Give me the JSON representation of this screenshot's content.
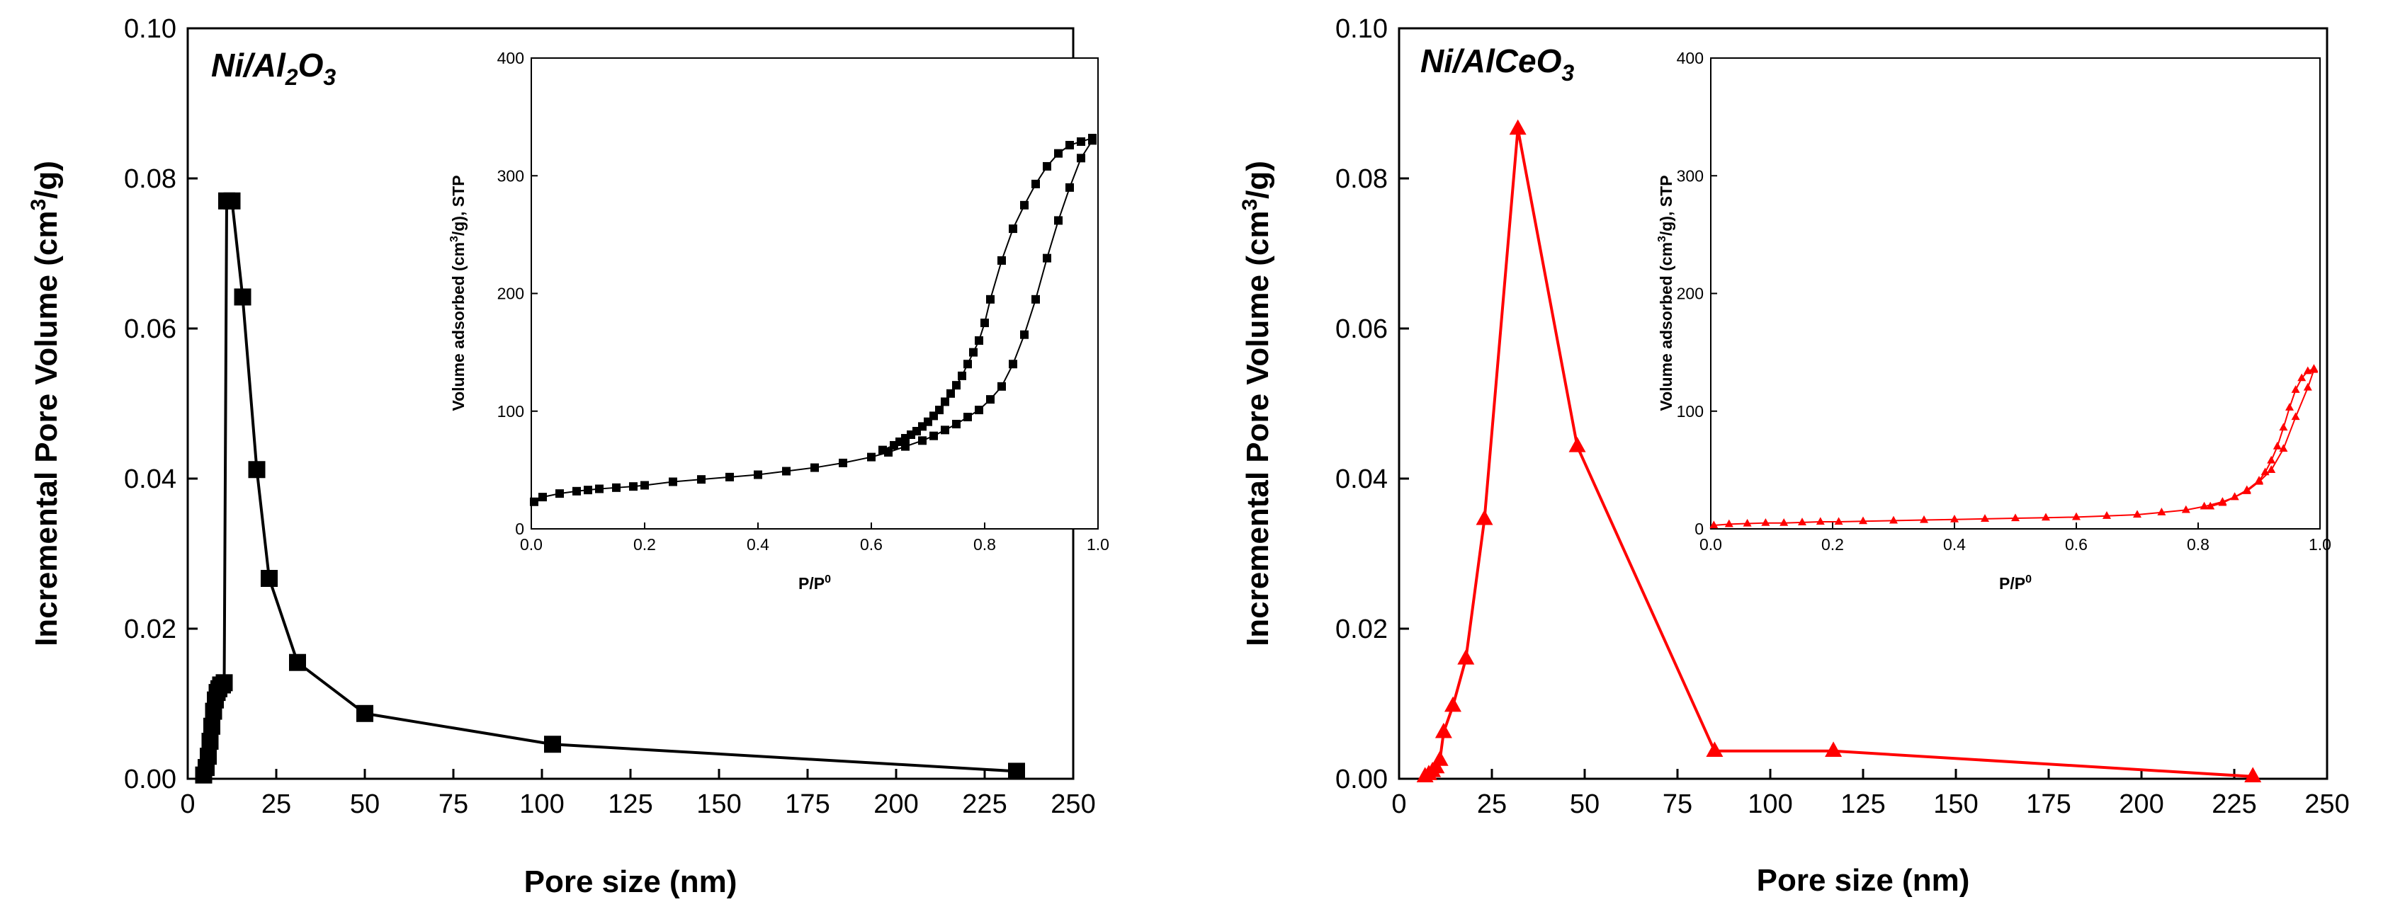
{
  "chart_data": [
    {
      "type": "line",
      "panel": "left",
      "title": "Ni/Al2O3",
      "title_parts": {
        "base": "Ni/Al",
        "sub1": "2",
        "mid": "O",
        "sub2": "3"
      },
      "xlabel": "Pore size (nm)",
      "ylabel": {
        "text": "Incremental Pore Volume (cm",
        "sup": "3",
        "tail": "/g)"
      },
      "xlim": [
        0,
        250
      ],
      "ylim": [
        0,
        0.1
      ],
      "xticks": [
        "0",
        "25",
        "50",
        "75",
        "100",
        "125",
        "150",
        "175",
        "200",
        "225",
        "250"
      ],
      "yticks": [
        "0.00",
        "0.02",
        "0.04",
        "0.06",
        "0.08",
        "0.10"
      ],
      "color": "#000000",
      "marker": "square",
      "series": [
        {
          "name": "Ni/Al2O3",
          "x": [
            4.5,
            5.2,
            5.8,
            6.3,
            6.8,
            7.3,
            7.8,
            8.3,
            8.8,
            9.3,
            9.8,
            10.3,
            11.0,
            12.5,
            15.5,
            19.5,
            23.0,
            31.0,
            50.0,
            103.0,
            234.0
          ],
          "y": [
            0.0005,
            0.0015,
            0.003,
            0.005,
            0.007,
            0.009,
            0.0105,
            0.0115,
            0.012,
            0.0125,
            0.0125,
            0.0128,
            0.077,
            0.077,
            0.0642,
            0.0412,
            0.0267,
            0.0155,
            0.0087,
            0.0046,
            0.001
          ]
        }
      ],
      "inset": {
        "type": "line",
        "xlabel": {
          "text": "P/P",
          "sup": "0"
        },
        "ylabel": {
          "text": "Volume adsorbed (cm",
          "sup": "3",
          "tail": "/g), STP"
        },
        "xlim": [
          0,
          1.0
        ],
        "ylim": [
          0,
          400
        ],
        "xticks": [
          "0.0",
          "0.2",
          "0.4",
          "0.6",
          "0.8",
          "1.0"
        ],
        "yticks": [
          "0",
          "100",
          "200",
          "300",
          "400"
        ],
        "series": [
          {
            "name": "adsorption",
            "x": [
              0.005,
              0.02,
              0.05,
              0.08,
              0.1,
              0.12,
              0.15,
              0.18,
              0.2,
              0.25,
              0.3,
              0.35,
              0.4,
              0.45,
              0.5,
              0.55,
              0.6,
              0.63,
              0.66,
              0.69,
              0.71,
              0.73,
              0.75,
              0.77,
              0.79,
              0.81,
              0.83,
              0.85,
              0.87,
              0.89,
              0.91,
              0.93,
              0.95,
              0.97,
              0.99
            ],
            "y": [
              23,
              27,
              30,
              32,
              33,
              34,
              35,
              36,
              37,
              40,
              42,
              44,
              46,
              49,
              52,
              56,
              61,
              65,
              70,
              75,
              79,
              84,
              89,
              95,
              101,
              110,
              121,
              140,
              165,
              195,
              230,
              262,
              290,
              315,
              330
            ]
          },
          {
            "name": "desorption",
            "x": [
              0.99,
              0.97,
              0.95,
              0.93,
              0.91,
              0.89,
              0.87,
              0.85,
              0.83,
              0.81,
              0.8,
              0.79,
              0.78,
              0.77,
              0.76,
              0.75,
              0.74,
              0.73,
              0.72,
              0.71,
              0.7,
              0.69,
              0.68,
              0.67,
              0.66,
              0.65,
              0.64,
              0.62
            ],
            "y": [
              332,
              329,
              326,
              319,
              308,
              293,
              275,
              255,
              228,
              195,
              175,
              160,
              150,
              140,
              130,
              122,
              115,
              108,
              101,
              96,
              91,
              87,
              83,
              80,
              77,
              74,
              71,
              67
            ]
          }
        ]
      }
    },
    {
      "type": "line",
      "panel": "right",
      "title": "Ni/AlCeO3",
      "title_parts": {
        "base": "Ni/AlCeO",
        "sub1": "3"
      },
      "xlabel": "Pore size (nm)",
      "ylabel": {
        "text": "Incremental Pore Volume (cm",
        "sup": "3",
        "tail": "/g)"
      },
      "xlim": [
        0,
        250
      ],
      "ylim": [
        0,
        0.1
      ],
      "xticks": [
        "0",
        "25",
        "50",
        "75",
        "100",
        "125",
        "150",
        "175",
        "200",
        "225",
        "250"
      ],
      "yticks": [
        "0.00",
        "0.02",
        "0.04",
        "0.06",
        "0.08",
        "0.10"
      ],
      "color": "#ff0000",
      "marker": "triangle",
      "series": [
        {
          "name": "Ni/AlCeO3",
          "x": [
            7.0,
            8.0,
            9.0,
            10.0,
            11.0,
            12.0,
            14.5,
            18.0,
            23.0,
            32.0,
            48.0,
            85.0,
            117.0,
            230.0
          ],
          "y": [
            0.0003,
            0.0006,
            0.001,
            0.0015,
            0.0025,
            0.0062,
            0.0097,
            0.016,
            0.0346,
            0.0866,
            0.0443,
            0.0037,
            0.0037,
            0.0003
          ]
        }
      ],
      "inset": {
        "type": "line",
        "xlabel": {
          "text": "P/P",
          "sup": "0"
        },
        "ylabel": {
          "text": "Volume adsorbed (cm",
          "sup": "3",
          "tail": "/g), STP"
        },
        "xlim": [
          0,
          1.0
        ],
        "ylim": [
          0,
          400
        ],
        "xticks": [
          "0.0",
          "0.2",
          "0.4",
          "0.6",
          "0.8",
          "1.0"
        ],
        "yticks": [
          "0",
          "100",
          "200",
          "300",
          "400"
        ],
        "series": [
          {
            "name": "adsorption",
            "x": [
              0.005,
              0.03,
              0.06,
              0.09,
              0.12,
              0.15,
              0.18,
              0.21,
              0.25,
              0.3,
              0.35,
              0.4,
              0.45,
              0.5,
              0.55,
              0.6,
              0.65,
              0.7,
              0.74,
              0.78,
              0.81,
              0.84,
              0.86,
              0.88,
              0.9,
              0.92,
              0.94,
              0.96,
              0.98,
              0.99
            ],
            "y": [
              3,
              4,
              4.5,
              5,
              5,
              5.5,
              6,
              6,
              6.5,
              7,
              7.5,
              8,
              8.5,
              9,
              9.5,
              10,
              11,
              12,
              14,
              16,
              19,
              23,
              27,
              32,
              40,
              50,
              68,
              95,
              120,
              135
            ]
          },
          {
            "name": "desorption",
            "x": [
              0.99,
              0.98,
              0.97,
              0.96,
              0.95,
              0.94,
              0.93,
              0.92,
              0.91,
              0.9,
              0.88,
              0.86,
              0.84,
              0.82
            ],
            "y": [
              136,
              134,
              128,
              118,
              103,
              86,
              70,
              58,
              48,
              41,
              33,
              27,
              22,
              19
            ]
          }
        ]
      }
    }
  ]
}
